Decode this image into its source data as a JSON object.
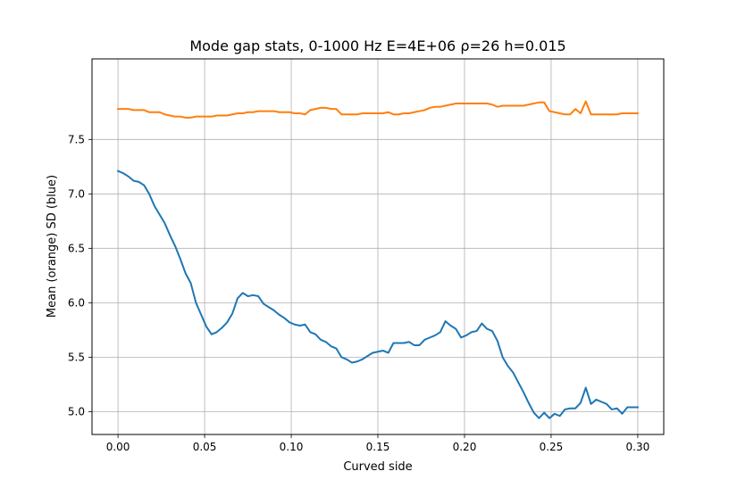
{
  "chart_data": {
    "type": "line",
    "title": "Mode gap stats, 0-1000 Hz E=4E+06 ρ=26 h=0.015",
    "xlabel": "Curved side",
    "ylabel": "Mean (orange) SD (blue)",
    "xlim": [
      -0.015,
      0.315
    ],
    "ylim": [
      4.79,
      8.24
    ],
    "xticks": [
      0.0,
      0.05,
      0.1,
      0.15,
      0.2,
      0.25,
      0.3
    ],
    "xtick_labels": [
      "0.00",
      "0.05",
      "0.10",
      "0.15",
      "0.20",
      "0.25",
      "0.30"
    ],
    "yticks": [
      5.0,
      5.5,
      6.0,
      6.5,
      7.0,
      7.5
    ],
    "ytick_labels": [
      "5.0",
      "5.5",
      "6.0",
      "6.5",
      "7.0",
      "7.5"
    ],
    "grid": true,
    "x": [
      0.0,
      0.003,
      0.006,
      0.009,
      0.012,
      0.015,
      0.018,
      0.021,
      0.024,
      0.027,
      0.03,
      0.033,
      0.036,
      0.039,
      0.042,
      0.045,
      0.048,
      0.051,
      0.054,
      0.057,
      0.06,
      0.063,
      0.066,
      0.069,
      0.072,
      0.075,
      0.078,
      0.081,
      0.084,
      0.087,
      0.09,
      0.093,
      0.096,
      0.099,
      0.102,
      0.105,
      0.108,
      0.111,
      0.114,
      0.117,
      0.12,
      0.123,
      0.126,
      0.129,
      0.132,
      0.135,
      0.138,
      0.141,
      0.144,
      0.147,
      0.15,
      0.153,
      0.156,
      0.159,
      0.162,
      0.165,
      0.168,
      0.171,
      0.174,
      0.177,
      0.18,
      0.183,
      0.186,
      0.189,
      0.192,
      0.195,
      0.198,
      0.201,
      0.204,
      0.207,
      0.21,
      0.213,
      0.216,
      0.219,
      0.222,
      0.225,
      0.228,
      0.231,
      0.234,
      0.237,
      0.24,
      0.243,
      0.246,
      0.249,
      0.252,
      0.255,
      0.258,
      0.261,
      0.264,
      0.267,
      0.27,
      0.273,
      0.276,
      0.279,
      0.282,
      0.285,
      0.288,
      0.291,
      0.294,
      0.297,
      0.3
    ],
    "series": [
      {
        "color": "#1f77b4",
        "values": [
          7.21,
          7.19,
          7.16,
          7.12,
          7.11,
          7.08,
          7.0,
          6.89,
          6.81,
          6.73,
          6.62,
          6.52,
          6.4,
          6.27,
          6.18,
          6.0,
          5.89,
          5.78,
          5.71,
          5.73,
          5.77,
          5.82,
          5.9,
          6.04,
          6.09,
          6.06,
          6.07,
          6.06,
          5.99,
          5.96,
          5.93,
          5.89,
          5.86,
          5.82,
          5.8,
          5.79,
          5.8,
          5.73,
          5.71,
          5.66,
          5.64,
          5.6,
          5.58,
          5.5,
          5.48,
          5.45,
          5.46,
          5.48,
          5.51,
          5.54,
          5.55,
          5.56,
          5.54,
          5.63,
          5.63,
          5.63,
          5.64,
          5.61,
          5.61,
          5.66,
          5.68,
          5.7,
          5.73,
          5.83,
          5.79,
          5.76,
          5.68,
          5.7,
          5.73,
          5.74,
          5.81,
          5.76,
          5.74,
          5.65,
          5.5,
          5.42,
          5.36,
          5.27,
          5.18,
          5.08,
          4.99,
          4.94,
          4.99,
          4.94,
          4.98,
          4.96,
          5.02,
          5.03,
          5.03,
          5.08,
          5.22,
          5.07,
          5.11,
          5.09,
          5.07,
          5.02,
          5.03,
          4.98,
          5.04,
          5.04,
          5.04
        ]
      },
      {
        "color": "#ff7f0e",
        "values": [
          7.78,
          7.78,
          7.78,
          7.77,
          7.77,
          7.77,
          7.75,
          7.75,
          7.75,
          7.73,
          7.72,
          7.71,
          7.71,
          7.7,
          7.7,
          7.71,
          7.71,
          7.71,
          7.71,
          7.72,
          7.72,
          7.72,
          7.73,
          7.74,
          7.74,
          7.75,
          7.75,
          7.76,
          7.76,
          7.76,
          7.76,
          7.75,
          7.75,
          7.75,
          7.74,
          7.74,
          7.73,
          7.77,
          7.78,
          7.79,
          7.79,
          7.78,
          7.78,
          7.73,
          7.73,
          7.73,
          7.73,
          7.74,
          7.74,
          7.74,
          7.74,
          7.74,
          7.75,
          7.73,
          7.73,
          7.74,
          7.74,
          7.75,
          7.76,
          7.77,
          7.79,
          7.8,
          7.8,
          7.81,
          7.82,
          7.83,
          7.83,
          7.83,
          7.83,
          7.83,
          7.83,
          7.83,
          7.82,
          7.8,
          7.81,
          7.81,
          7.81,
          7.81,
          7.81,
          7.82,
          7.83,
          7.84,
          7.84,
          7.76,
          7.75,
          7.74,
          7.73,
          7.73,
          7.78,
          7.74,
          7.85,
          7.73,
          7.73,
          7.73,
          7.73,
          7.73,
          7.73,
          7.74,
          7.74,
          7.74,
          7.74
        ]
      }
    ]
  }
}
